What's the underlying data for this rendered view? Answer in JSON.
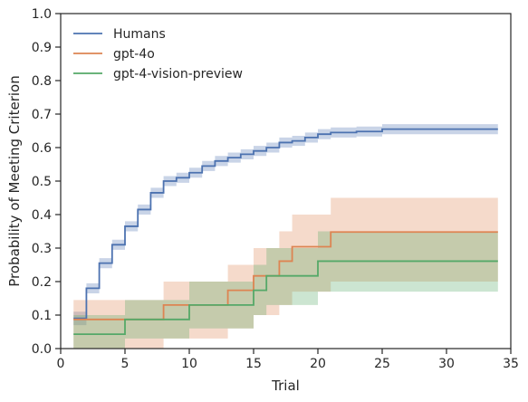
{
  "chart_data": {
    "type": "line",
    "title": "",
    "xlabel": "Trial",
    "ylabel": "Probability of Meeting Criterion",
    "xlim": [
      0,
      35
    ],
    "ylim": [
      0,
      1.0
    ],
    "xticks": [
      "0",
      "5",
      "10",
      "15",
      "20",
      "25",
      "30",
      "35"
    ],
    "yticks": [
      "0.0",
      "0.1",
      "0.2",
      "0.3",
      "0.4",
      "0.5",
      "0.6",
      "0.7",
      "0.8",
      "0.9",
      "1.0"
    ],
    "grid": false,
    "legend_position": "top-left",
    "step": true,
    "series": [
      {
        "name": "Humans",
        "color": "#4c72b0",
        "x": [
          1,
          2,
          3,
          4,
          5,
          6,
          7,
          8,
          9,
          10,
          11,
          12,
          13,
          14,
          15,
          16,
          17,
          18,
          19,
          20,
          21,
          22,
          23,
          25,
          34
        ],
        "y": [
          0.09,
          0.18,
          0.255,
          0.31,
          0.365,
          0.415,
          0.465,
          0.5,
          0.51,
          0.525,
          0.545,
          0.56,
          0.57,
          0.58,
          0.59,
          0.6,
          0.615,
          0.62,
          0.63,
          0.64,
          0.645,
          0.645,
          0.648,
          0.655,
          0.655
        ],
        "lower": [
          0.07,
          0.165,
          0.24,
          0.295,
          0.35,
          0.4,
          0.45,
          0.485,
          0.495,
          0.51,
          0.53,
          0.545,
          0.555,
          0.565,
          0.575,
          0.585,
          0.6,
          0.605,
          0.615,
          0.625,
          0.63,
          0.63,
          0.633,
          0.64,
          0.64
        ],
        "upper": [
          0.11,
          0.195,
          0.27,
          0.325,
          0.38,
          0.43,
          0.48,
          0.515,
          0.525,
          0.54,
          0.56,
          0.575,
          0.585,
          0.595,
          0.605,
          0.615,
          0.63,
          0.635,
          0.645,
          0.655,
          0.66,
          0.66,
          0.663,
          0.67,
          0.67
        ]
      },
      {
        "name": "gpt-4o",
        "color": "#dd8452",
        "x": [
          1,
          5,
          8,
          13,
          15,
          17,
          18,
          21,
          34
        ],
        "y": [
          0.087,
          0.087,
          0.13,
          0.174,
          0.217,
          0.261,
          0.304,
          0.348,
          0.348
        ],
        "lower": [
          0.0,
          0.0,
          0.03,
          0.06,
          0.1,
          0.13,
          0.17,
          0.2,
          0.2
        ],
        "upper": [
          0.145,
          0.145,
          0.2,
          0.25,
          0.3,
          0.35,
          0.4,
          0.45,
          0.45
        ]
      },
      {
        "name": "gpt-4-vision-preview",
        "color": "#55a868",
        "x": [
          1,
          5,
          10,
          15,
          16,
          20,
          34
        ],
        "y": [
          0.043,
          0.087,
          0.13,
          0.174,
          0.217,
          0.261,
          0.261
        ],
        "lower": [
          0.0,
          0.03,
          0.06,
          0.1,
          0.13,
          0.17,
          0.17
        ],
        "upper": [
          0.1,
          0.145,
          0.2,
          0.25,
          0.3,
          0.35,
          0.35
        ]
      }
    ]
  }
}
